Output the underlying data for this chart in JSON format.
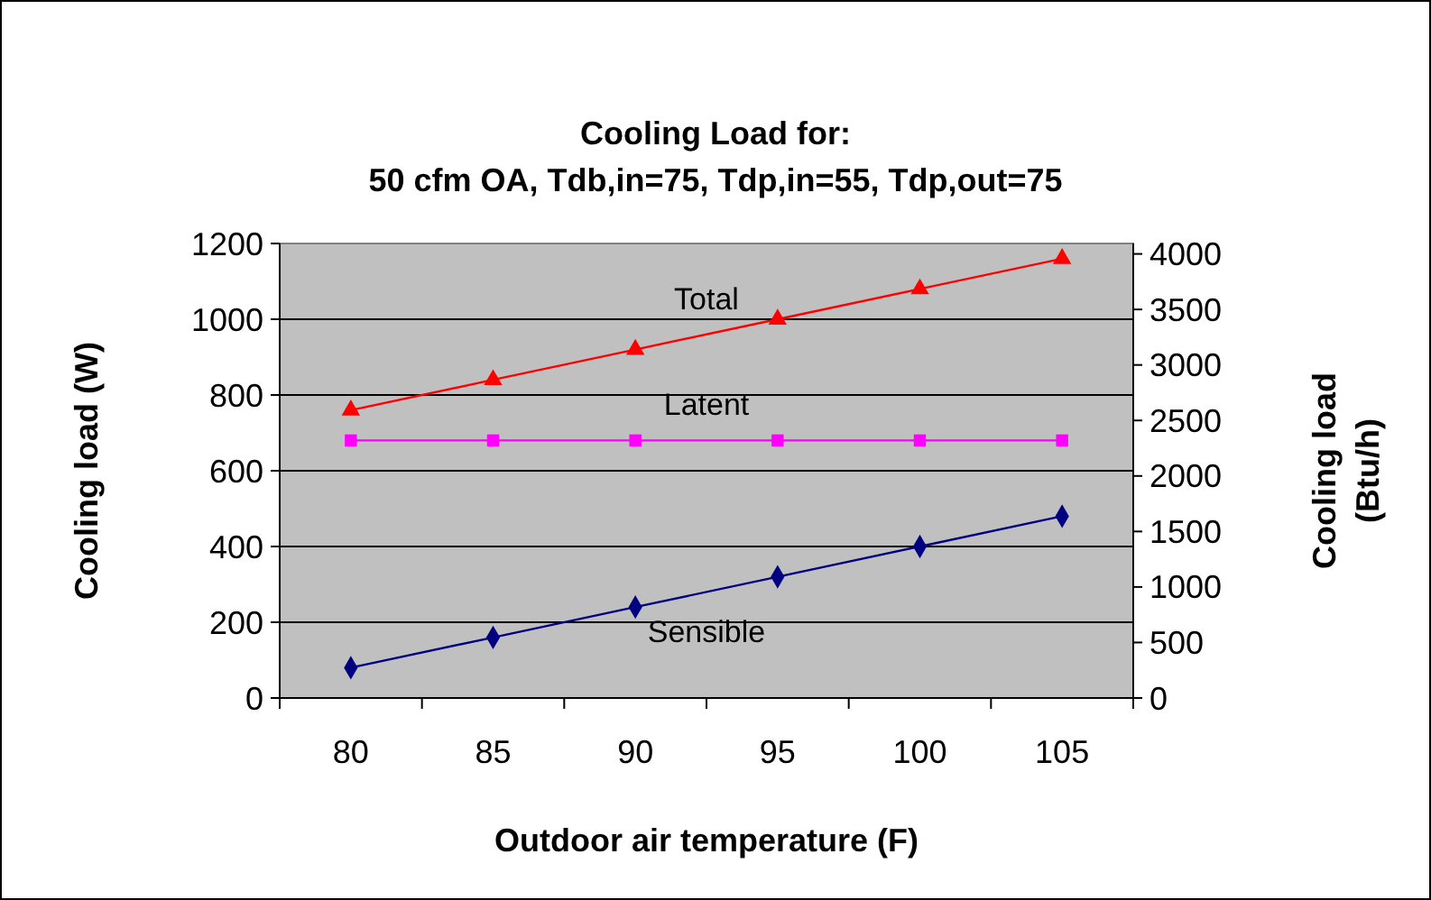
{
  "chart_data": {
    "type": "line",
    "title": "Cooling Load for:",
    "subtitle": "50 cfm OA, Tdb,in=75, Tdp,in=55, Tdp,out=75",
    "xlabel": "Outdoor air temperature (F)",
    "ylabel": "Cooling load (W)",
    "y2label": "Cooling load (Btu/h)",
    "categories": [
      "80",
      "85",
      "90",
      "95",
      "100",
      "105"
    ],
    "series": [
      {
        "name": "Total",
        "color": "#ff0000",
        "marker": "triangle",
        "values": [
          760,
          840,
          920,
          1000,
          1080,
          1160
        ]
      },
      {
        "name": "Latent",
        "color": "#ff00ff",
        "marker": "square",
        "values": [
          680,
          680,
          680,
          680,
          680,
          680
        ]
      },
      {
        "name": "Sensible",
        "color": "#000080",
        "marker": "diamond",
        "values": [
          80,
          160,
          240,
          320,
          400,
          480
        ]
      }
    ],
    "ylim": [
      0,
      1200
    ],
    "yticks": [
      0,
      200,
      400,
      600,
      800,
      1000,
      1200
    ],
    "y2lim": [
      0,
      4094
    ],
    "y2ticks": [
      0,
      500,
      1000,
      1500,
      2000,
      2500,
      3000,
      3500,
      4000
    ],
    "grid": "y"
  }
}
